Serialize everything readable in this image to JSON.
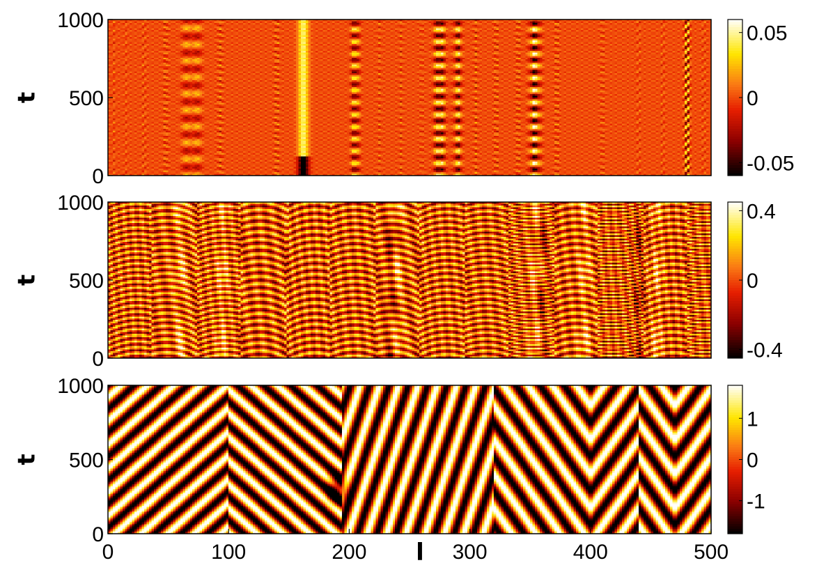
{
  "chart_data": [
    {
      "type": "heatmap",
      "panel": "top",
      "ylabel": "t",
      "xlim": [
        0,
        500
      ],
      "ylim": [
        0,
        1000
      ],
      "yticks": [
        {
          "v": 0,
          "label": "0"
        },
        {
          "v": 500,
          "label": "500"
        },
        {
          "v": 1000,
          "label": "1000"
        }
      ],
      "clim": [
        -0.06,
        0.06
      ],
      "colorbar_ticks": [
        {
          "v": 0.05,
          "label": "0.05"
        },
        {
          "v": 0,
          "label": "0"
        },
        {
          "v": -0.05,
          "label": "-0.05"
        }
      ],
      "colormap": "hot",
      "features": [
        {
          "x": 5,
          "kind": "fine-stripes",
          "width": 2.0,
          "amp": 0.01
        },
        {
          "x": 15,
          "kind": "fine-stripes",
          "width": 2.0,
          "amp": 0.01
        },
        {
          "x": 30,
          "kind": "fine-stripes",
          "width": 2.5,
          "amp": 0.012
        },
        {
          "x": 48,
          "kind": "stripes",
          "width": 2.5,
          "amp": 0.018
        },
        {
          "x": 65,
          "kind": "blobs",
          "width": 4.0,
          "amp": 0.025
        },
        {
          "x": 74,
          "kind": "blobs",
          "width": 4.0,
          "amp": 0.025
        },
        {
          "x": 93,
          "kind": "stripes",
          "width": 2.5,
          "amp": 0.02
        },
        {
          "x": 140,
          "kind": "stripes",
          "width": 2.5,
          "amp": 0.02
        },
        {
          "x": 162,
          "kind": "bright-column",
          "width": 4.0,
          "amp": 0.045
        },
        {
          "x": 205,
          "kind": "dots",
          "width": 3.5,
          "amp": 0.045
        },
        {
          "x": 225,
          "kind": "stripes",
          "width": 2.0,
          "amp": 0.015
        },
        {
          "x": 243,
          "kind": "stripes",
          "width": 2.0,
          "amp": 0.015
        },
        {
          "x": 260,
          "kind": "stripes",
          "width": 2.0,
          "amp": 0.012
        },
        {
          "x": 275,
          "kind": "dots",
          "width": 4.5,
          "amp": 0.055
        },
        {
          "x": 290,
          "kind": "dots",
          "width": 3.5,
          "amp": 0.045
        },
        {
          "x": 305,
          "kind": "stripes",
          "width": 2.0,
          "amp": 0.02
        },
        {
          "x": 322,
          "kind": "stripes",
          "width": 2.0,
          "amp": 0.02
        },
        {
          "x": 340,
          "kind": "stripes",
          "width": 2.0,
          "amp": 0.02
        },
        {
          "x": 354,
          "kind": "dots",
          "width": 4.5,
          "amp": 0.055
        },
        {
          "x": 372,
          "kind": "stripes",
          "width": 2.0,
          "amp": 0.02
        },
        {
          "x": 410,
          "kind": "stripes",
          "width": 2.0,
          "amp": 0.015
        },
        {
          "x": 440,
          "kind": "fine-stripes",
          "width": 2.0,
          "amp": 0.012
        },
        {
          "x": 460,
          "kind": "fine-stripes",
          "width": 2.0,
          "amp": 0.012
        },
        {
          "x": 480,
          "kind": "fine-stripes",
          "width": 2.5,
          "amp": 0.05
        },
        {
          "x": 494,
          "kind": "fine-stripes",
          "width": 2.0,
          "amp": 0.012
        }
      ]
    },
    {
      "type": "heatmap",
      "panel": "middle",
      "ylabel": "t",
      "xlim": [
        0,
        500
      ],
      "ylim": [
        0,
        1000
      ],
      "yticks": [
        {
          "v": 0,
          "label": "0"
        },
        {
          "v": 500,
          "label": "500"
        },
        {
          "v": 1000,
          "label": "1000"
        }
      ],
      "clim": [
        -0.45,
        0.45
      ],
      "colorbar_ticks": [
        {
          "v": 0.4,
          "label": "0.4"
        },
        {
          "v": 0,
          "label": "0"
        },
        {
          "v": -0.4,
          "label": "-0.4"
        }
      ],
      "colormap": "hot",
      "pattern": "dense irregular oscillatory bands with domain walls",
      "amplitude": 0.4
    },
    {
      "type": "heatmap",
      "panel": "bottom",
      "ylabel": "t",
      "xlabel": "l",
      "xlim": [
        0,
        500
      ],
      "ylim": [
        0,
        1000
      ],
      "xticks": [
        {
          "v": 0,
          "label": "0"
        },
        {
          "v": 100,
          "label": "100"
        },
        {
          "v": 200,
          "label": "200"
        },
        {
          "v": 300,
          "label": "300"
        },
        {
          "v": 400,
          "label": "400"
        },
        {
          "v": 500,
          "label": "500"
        }
      ],
      "yticks": [
        {
          "v": 0,
          "label": "0"
        },
        {
          "v": 500,
          "label": "500"
        },
        {
          "v": 1000,
          "label": "1000"
        }
      ],
      "clim": [
        -1.8,
        1.8
      ],
      "colorbar_ticks": [
        {
          "v": 1,
          "label": "1"
        },
        {
          "v": 0,
          "label": "0"
        },
        {
          "v": -1,
          "label": "-1"
        }
      ],
      "colormap": "hot",
      "pattern": "traveling waves forming V-shaped chevrons",
      "amplitude": 1.8,
      "domains": [
        {
          "x0": 0,
          "x1": 100,
          "direction": "right",
          "period_x": 22,
          "period_t": 160
        },
        {
          "x0": 100,
          "x1": 195,
          "direction": "left",
          "period_x": 22,
          "period_t": 160
        },
        {
          "x0": 195,
          "x1": 320,
          "direction": "right",
          "period_x": 16,
          "period_t": 380
        },
        {
          "x0": 320,
          "x1": 400,
          "direction": "left",
          "period_x": 20,
          "period_t": 230
        },
        {
          "x0": 400,
          "x1": 440,
          "direction": "right",
          "period_x": 20,
          "period_t": 230
        },
        {
          "x0": 440,
          "x1": 470,
          "direction": "left",
          "period_x": 20,
          "period_t": 230
        },
        {
          "x0": 470,
          "x1": 500,
          "direction": "right",
          "period_x": 20,
          "period_t": 230
        }
      ]
    }
  ]
}
